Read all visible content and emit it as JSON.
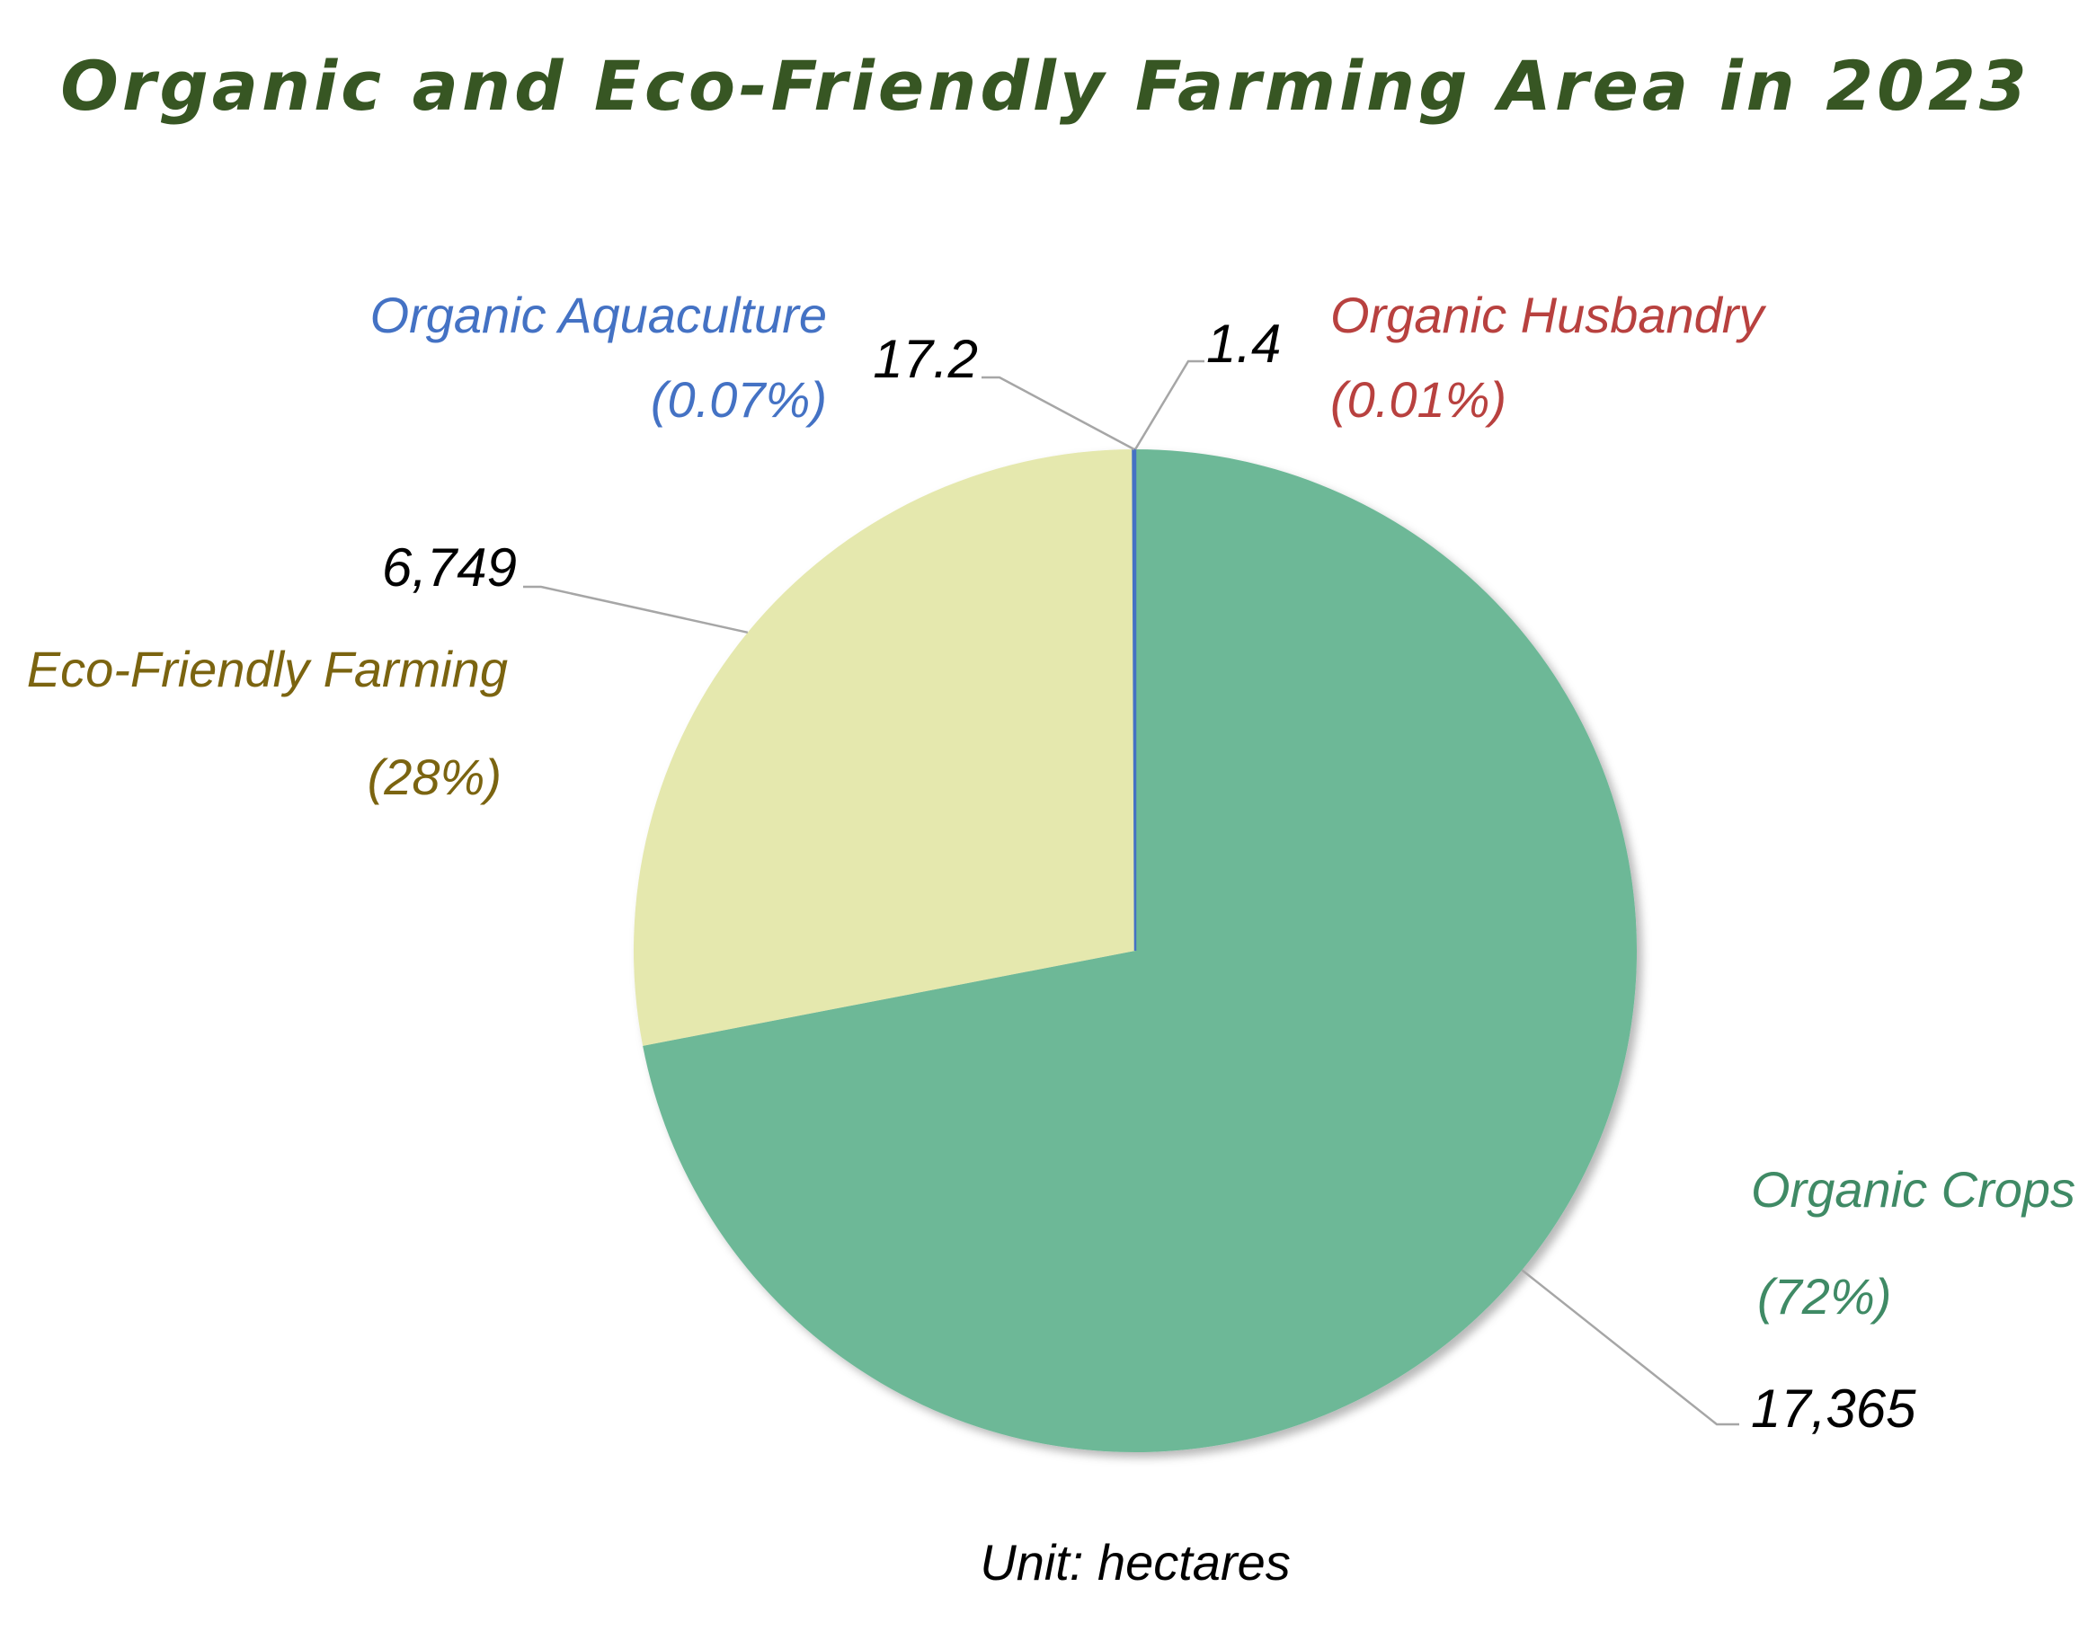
{
  "chart_data": {
    "type": "pie",
    "title": "Organic and Eco-Friendly Farming Area in 2023",
    "unit_note": "Unit: hectares",
    "start_angle_deg": 0,
    "direction": "clockwise",
    "slices": [
      {
        "name": "Organic Husbandry",
        "value": 1.4,
        "value_label": "1.4",
        "percent_label": "(0.01%)",
        "color": "#b8413f",
        "label_color": "#b8413f"
      },
      {
        "name": "Organic Crops",
        "value": 17365,
        "value_label": "17,365",
        "percent_label": "(72%)",
        "color": "#6db897",
        "label_color": "#3f8a65"
      },
      {
        "name": "Eco-Friendly Farming",
        "value": 6749,
        "value_label": "6,749",
        "percent_label": "(28%)",
        "color": "#e5e8ae",
        "label_color": "#7b6410"
      },
      {
        "name": "Organic Aquaculture",
        "value": 17.2,
        "value_label": "17.2",
        "percent_label": "(0.07%)",
        "color": "#4472c4",
        "label_color": "#4472c4"
      }
    ]
  },
  "colors": {
    "title": "#375623",
    "leader": "#a6a6a6"
  }
}
